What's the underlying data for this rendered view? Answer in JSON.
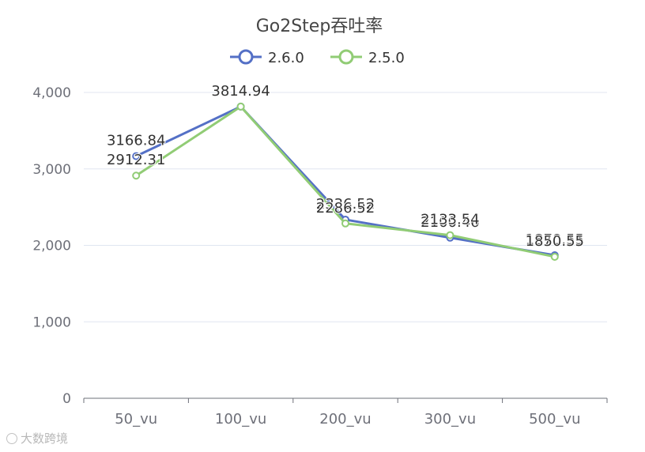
{
  "chart_data": {
    "type": "line",
    "title": "Go2Step吞吐率",
    "categories": [
      "50_vu",
      "100_vu",
      "200_vu",
      "300_vu",
      "500_vu"
    ],
    "series": [
      {
        "name": "2.6.0",
        "color": "#5470c6",
        "values": [
          3166.84,
          3814.94,
          2336.52,
          2100.46,
          1870.55
        ]
      },
      {
        "name": "2.5.0",
        "color": "#91cc75",
        "values": [
          2912.31,
          3814.94,
          2286.52,
          2133.54,
          1850.55
        ]
      }
    ],
    "yticks": [
      "0",
      "1,000",
      "2,000",
      "3,000",
      "4,000"
    ],
    "ylim": [
      0,
      4000
    ],
    "grid": true,
    "legend_position": "top-center",
    "show_data_labels": true
  },
  "watermark": {
    "text": "大数跨境"
  }
}
